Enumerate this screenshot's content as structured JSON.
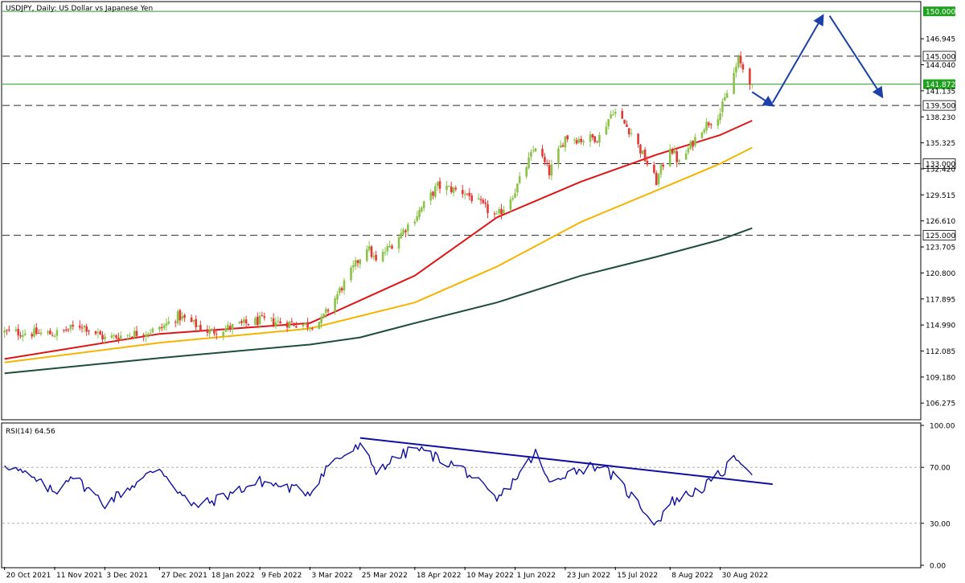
{
  "window": {
    "title": "USDJPY, Daily:  US Dollar vs Japanese Yen"
  },
  "rsi_title": "RSI(14) 64.56",
  "colors": {
    "bull": "#8bc34a",
    "bear": "#e53935",
    "ma_red": "#e01414",
    "ma_orange": "#f5b400",
    "ma_green": "#1e4d3a",
    "level_green": "#21a121",
    "rsi": "#1010a0",
    "annotation": "#1c3fa8"
  },
  "chart_data": [
    {
      "type": "candlestick",
      "symbol": "USDJPY",
      "timeframe": "Daily",
      "title": "USDJPY, Daily:  US Dollar vs Japanese Yen",
      "ylim": [
        104.5,
        151.0
      ],
      "y_ticks": [
        "146.945",
        "144.040",
        "141.135",
        "138.230",
        "135.325",
        "132.420",
        "129.515",
        "126.610",
        "123.705",
        "120.800",
        "117.895",
        "114.990",
        "112.085",
        "109.180",
        "106.275"
      ],
      "x_labels": [
        "20 Oct 2021",
        "11 Nov 2021",
        "3 Dec 2021",
        "27 Dec 2021",
        "18 Jan 2022",
        "9 Feb 2022",
        "3 Mar 2022",
        "25 Mar 2022",
        "18 Apr 2022",
        "10 May 2022",
        "1 Jun 2022",
        "23 Jun 2022",
        "15 Jul 2022",
        "8 Aug 2022",
        "30 Aug 2022"
      ],
      "price_levels": [
        {
          "value": 150.0,
          "label": "150.000",
          "style": "solid"
        },
        {
          "value": 145.0,
          "label": "145.000",
          "style": "dashed"
        },
        {
          "value": 139.5,
          "label": "139.500",
          "style": "dashed"
        },
        {
          "value": 133.0,
          "label": "133.000",
          "style": "dashed"
        },
        {
          "value": 125.0,
          "label": "125.000",
          "style": "dashed"
        }
      ],
      "current_price": {
        "value": 141.872,
        "label": "141.872"
      },
      "price_keypoints": [
        [
          "20 Oct 2021",
          114.2
        ],
        [
          "11 Nov 2021",
          114.0
        ],
        [
          "23 Nov 2021",
          115.0
        ],
        [
          "3 Dec 2021",
          113.5
        ],
        [
          "27 Dec 2021",
          114.5
        ],
        [
          "4 Jan 2022",
          116.0
        ],
        [
          "18 Jan 2022",
          114.2
        ],
        [
          "9 Feb 2022",
          115.5
        ],
        [
          "3 Mar 2022",
          115.0
        ],
        [
          "8 Mar 2022",
          115.5
        ],
        [
          "28 Mar 2022",
          123.8
        ],
        [
          "1 Apr 2022",
          122.0
        ],
        [
          "18 Apr 2022",
          127.0
        ],
        [
          "28 Apr 2022",
          130.5
        ],
        [
          "10 May 2022",
          129.8
        ],
        [
          "24 May 2022",
          127.0
        ],
        [
          "1 Jun 2022",
          130.0
        ],
        [
          "10 Jun 2022",
          135.0
        ],
        [
          "16 Jun 2022",
          132.0
        ],
        [
          "23 Jun 2022",
          136.0
        ],
        [
          "30 Jun 2022",
          135.7
        ],
        [
          "8 Jul 2022",
          136.0
        ],
        [
          "14 Jul 2022",
          139.0
        ],
        [
          "22 Jul 2022",
          136.5
        ],
        [
          "2 Aug 2022",
          131.0
        ],
        [
          "8 Aug 2022",
          135.0
        ],
        [
          "12 Aug 2022",
          133.0
        ],
        [
          "22 Aug 2022",
          137.0
        ],
        [
          "30 Aug 2022",
          138.7
        ],
        [
          "7 Sep 2022",
          144.5
        ],
        [
          "13 Sep 2022",
          141.872
        ]
      ],
      "moving_averages": [
        {
          "color": "#e01414",
          "points": [
            [
              "20 Oct 2021",
              111.2
            ],
            [
              "27 Dec 2021",
              114.0
            ],
            [
              "3 Mar 2022",
              115.2
            ],
            [
              "18 Apr 2022",
              120.5
            ],
            [
              "24 May 2022",
              127.0
            ],
            [
              "30 Jun 2022",
              131.0
            ],
            [
              "2 Aug 2022",
              134.0
            ],
            [
              "30 Aug 2022",
              136.2
            ],
            [
              "13 Sep 2022",
              137.8
            ]
          ]
        },
        {
          "color": "#f5b400",
          "points": [
            [
              "20 Oct 2021",
              110.8
            ],
            [
              "27 Dec 2021",
              113.0
            ],
            [
              "3 Mar 2022",
              114.6
            ],
            [
              "18 Apr 2022",
              117.5
            ],
            [
              "24 May 2022",
              121.5
            ],
            [
              "30 Jun 2022",
              126.5
            ],
            [
              "2 Aug 2022",
              130.0
            ],
            [
              "30 Aug 2022",
              133.0
            ],
            [
              "13 Sep 2022",
              134.8
            ]
          ]
        },
        {
          "color": "#1e4d3a",
          "points": [
            [
              "20 Oct 2021",
              109.6
            ],
            [
              "27 Dec 2021",
              111.3
            ],
            [
              "3 Mar 2022",
              112.8
            ],
            [
              "25 Mar 2022",
              113.6
            ],
            [
              "18 Apr 2022",
              115.2
            ],
            [
              "24 May 2022",
              117.5
            ],
            [
              "30 Jun 2022",
              120.5
            ],
            [
              "2 Aug 2022",
              122.6
            ],
            [
              "30 Aug 2022",
              124.5
            ],
            [
              "13 Sep 2022",
              125.8
            ]
          ]
        }
      ],
      "annotations": [
        {
          "type": "arrow",
          "from": [
            "13 Sep 2022",
            141.0
          ],
          "to": [
            "22 Sep 2022",
            139.5
          ]
        },
        {
          "type": "arrow",
          "from": [
            "22 Sep 2022",
            139.8
          ],
          "to": [
            "14 Oct 2022",
            149.5
          ]
        },
        {
          "type": "arrow",
          "from": [
            "17 Oct 2022",
            149.5
          ],
          "to": [
            "9 Nov 2022",
            140.5
          ]
        }
      ]
    },
    {
      "type": "line",
      "name": "RSI(14)",
      "title": "RSI(14) 64.56",
      "ylim": [
        0,
        100
      ],
      "y_ticks": [
        "100.00",
        "70.00",
        "30.00",
        "0.00"
      ],
      "reference_lines": [
        70,
        30
      ],
      "keypoints": [
        [
          "20 Oct 2021",
          73
        ],
        [
          "1 Nov 2021",
          62
        ],
        [
          "11 Nov 2021",
          52
        ],
        [
          "18 Nov 2021",
          65
        ],
        [
          "3 Dec 2021",
          44
        ],
        [
          "27 Dec 2021",
          70
        ],
        [
          "10 Jan 2022",
          42
        ],
        [
          "18 Jan 2022",
          45
        ],
        [
          "9 Feb 2022",
          60
        ],
        [
          "3 Mar 2022",
          52
        ],
        [
          "11 Mar 2022",
          72
        ],
        [
          "25 Mar 2022",
          85
        ],
        [
          "1 Apr 2022",
          68
        ],
        [
          "18 Apr 2022",
          84
        ],
        [
          "10 May 2022",
          68
        ],
        [
          "24 May 2022",
          46
        ],
        [
          "1 Jun 2022",
          62
        ],
        [
          "10 Jun 2022",
          80
        ],
        [
          "16 Jun 2022",
          58
        ],
        [
          "23 Jun 2022",
          66
        ],
        [
          "8 Jul 2022",
          72
        ],
        [
          "15 Jul 2022",
          62
        ],
        [
          "2 Aug 2022",
          30
        ],
        [
          "8 Aug 2022",
          45
        ],
        [
          "22 Aug 2022",
          55
        ],
        [
          "30 Aug 2022",
          65
        ],
        [
          "7 Sep 2022",
          78
        ],
        [
          "13 Sep 2022",
          64.56
        ]
      ],
      "trendline": {
        "from": [
          "25 Mar 2022",
          91
        ],
        "to": [
          "22 Sep 2022",
          58
        ]
      }
    }
  ]
}
